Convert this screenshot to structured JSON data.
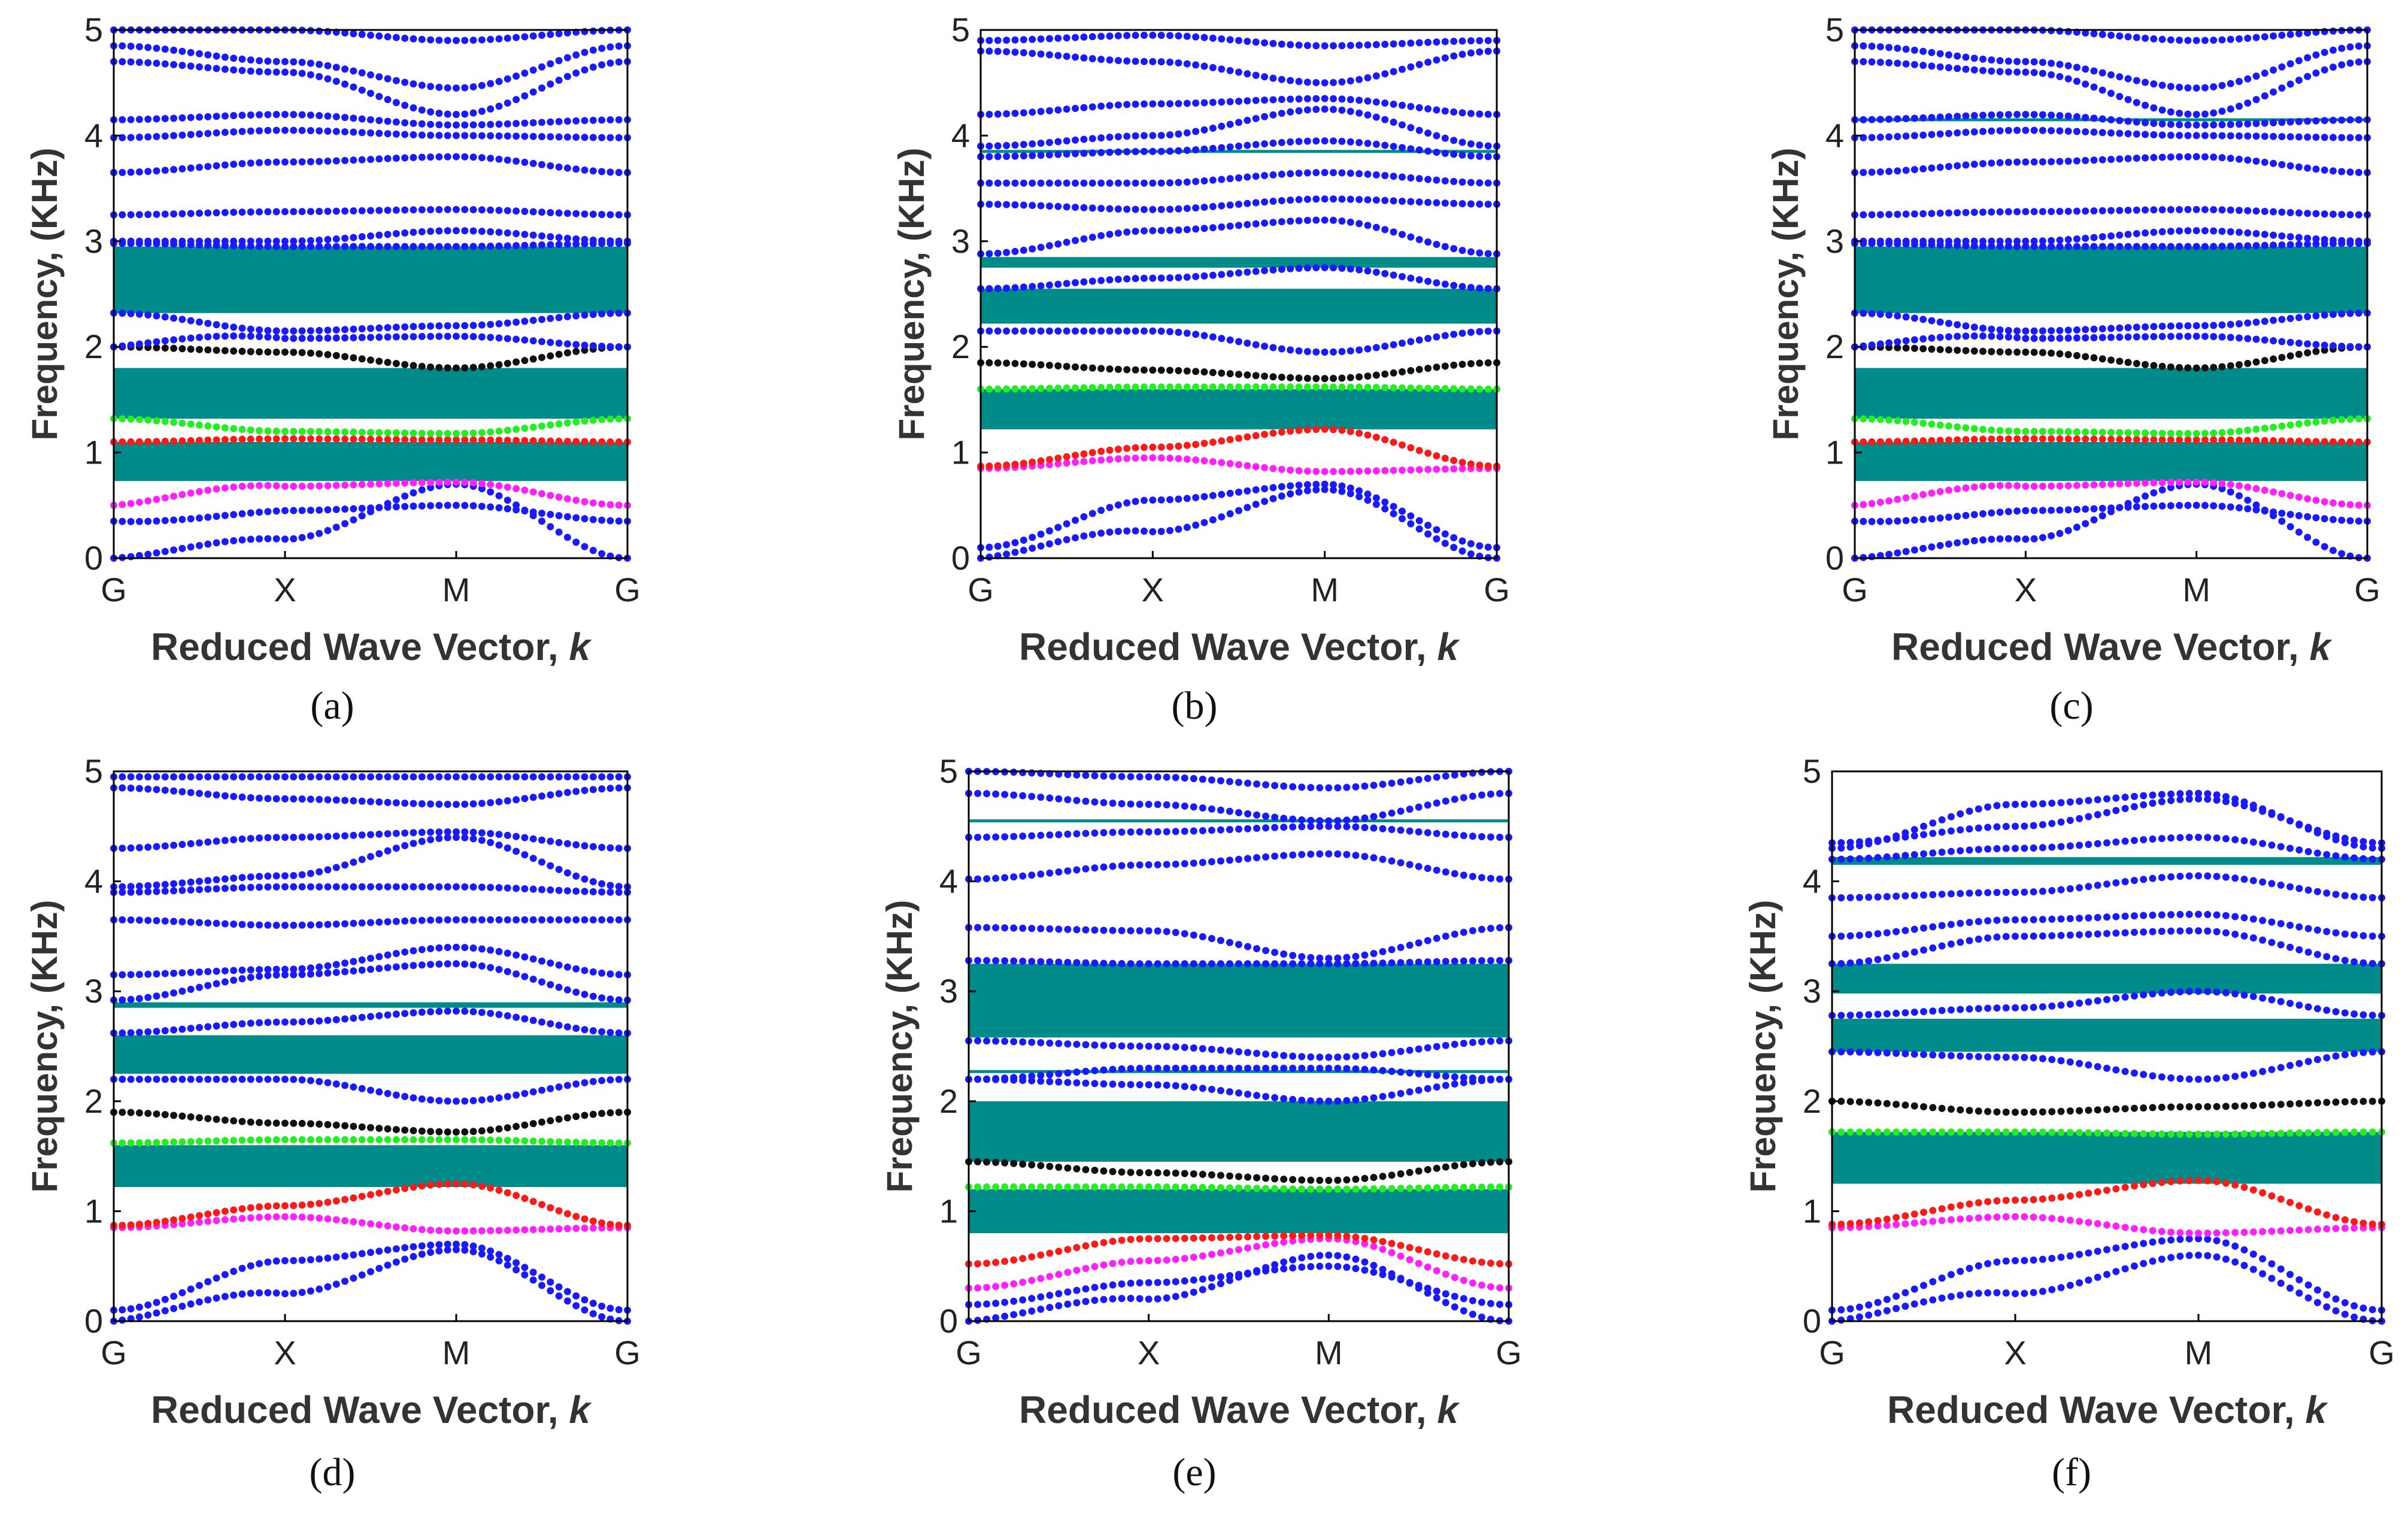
{
  "figure": {
    "ylabel": "Frequency, (KHz)",
    "xlabel": "Reduced Wave Vector, ",
    "xlabel_italic": "k",
    "xticks": [
      "G",
      "X",
      "M",
      "G"
    ],
    "yticks": [
      "0",
      "1",
      "2",
      "3",
      "4",
      "5"
    ]
  },
  "colors": {
    "band_default": "#1a1aff",
    "gap": "#008b8b",
    "red": "#ff1a1a",
    "green": "#22ee22",
    "magenta": "#ff22ff",
    "black": "#111111",
    "axis": "#000000",
    "background": "#ffffff"
  },
  "chart_data": [
    {
      "type": "scatter",
      "label": "(a)",
      "title": "",
      "xlabel": "Reduced Wave Vector, k",
      "ylabel": "Frequency, (KHz)",
      "x_ticks": [
        "G",
        "X",
        "M",
        "G"
      ],
      "x_range": [
        0,
        3
      ],
      "ylim": [
        0,
        5
      ],
      "bandgaps": [
        [
          0.73,
          1.1
        ],
        [
          1.32,
          1.8
        ],
        [
          2.32,
          2.95
        ]
      ],
      "flat_lines": [],
      "highlight": {
        "magenta": 2,
        "red": 3,
        "green": 4,
        "black": 5
      },
      "bands": [
        {
          "G": 0.0,
          "X": 0.18,
          "M": 0.7,
          "h": 0.03
        },
        {
          "G": 0.35,
          "X": 0.45,
          "M": 0.5,
          "h": -0.02
        },
        {
          "G": 0.5,
          "X": 0.68,
          "M": 0.72,
          "h": 0.04
        },
        {
          "G": 1.1,
          "X": 1.13,
          "M": 1.12,
          "h": 0.0
        },
        {
          "G": 1.32,
          "X": 1.2,
          "M": 1.18,
          "h": 0.0
        },
        {
          "G": 2.0,
          "X": 1.95,
          "M": 1.8,
          "h": 0.0
        },
        {
          "G": 2.0,
          "X": 2.08,
          "M": 2.1,
          "h": 0.05
        },
        {
          "G": 2.32,
          "X": 2.15,
          "M": 2.2,
          "h": 0.0
        },
        {
          "G": 2.98,
          "X": 2.95,
          "M": 2.95,
          "h": 0.0
        },
        {
          "G": 3.0,
          "X": 3.0,
          "M": 3.1,
          "h": 0.0
        },
        {
          "G": 3.25,
          "X": 3.28,
          "M": 3.3,
          "h": 0.0
        },
        {
          "G": 3.65,
          "X": 3.75,
          "M": 3.8,
          "h": 0.0
        },
        {
          "G": 3.98,
          "X": 4.05,
          "M": 4.0,
          "h": 0.0
        },
        {
          "G": 4.15,
          "X": 4.2,
          "M": 4.1,
          "h": 0.0
        },
        {
          "G": 4.7,
          "X": 4.6,
          "M": 4.2,
          "h": 0.0
        },
        {
          "G": 4.85,
          "X": 4.7,
          "M": 4.45,
          "h": 0.0
        },
        {
          "G": 5.0,
          "X": 5.0,
          "M": 4.9,
          "h": 0.0
        }
      ]
    },
    {
      "type": "scatter",
      "label": "(b)",
      "title": "",
      "xlabel": "Reduced Wave Vector, k",
      "ylabel": "Frequency, (KHz)",
      "x_ticks": [
        "G",
        "X",
        "M",
        "G"
      ],
      "x_range": [
        0,
        3
      ],
      "ylim": [
        0,
        5
      ],
      "bandgaps": [
        [
          1.22,
          1.6
        ],
        [
          2.22,
          2.55
        ],
        [
          2.75,
          2.85
        ]
      ],
      "flat_lines": [
        3.85
      ],
      "highlight": {
        "magenta": 2,
        "red": 3,
        "green": 4,
        "black": 5
      },
      "bands": [
        {
          "G": 0.0,
          "X": 0.25,
          "M": 0.65,
          "h": 0.05
        },
        {
          "G": 0.1,
          "X": 0.55,
          "M": 0.7,
          "h": 0.0
        },
        {
          "G": 0.85,
          "X": 0.95,
          "M": 0.82,
          "h": 0.0
        },
        {
          "G": 0.87,
          "X": 1.05,
          "M": 1.22,
          "h": 0.0
        },
        {
          "G": 1.6,
          "X": 1.62,
          "M": 1.62,
          "h": 0.0
        },
        {
          "G": 1.85,
          "X": 1.78,
          "M": 1.7,
          "h": 0.0
        },
        {
          "G": 2.15,
          "X": 2.15,
          "M": 1.95,
          "h": 0.0
        },
        {
          "G": 2.55,
          "X": 2.65,
          "M": 2.75,
          "h": 0.0
        },
        {
          "G": 2.88,
          "X": 3.1,
          "M": 3.2,
          "h": 0.0
        },
        {
          "G": 3.35,
          "X": 3.3,
          "M": 3.4,
          "h": 0.0
        },
        {
          "G": 3.55,
          "X": 3.55,
          "M": 3.65,
          "h": 0.0
        },
        {
          "G": 3.8,
          "X": 3.85,
          "M": 3.95,
          "h": 0.0
        },
        {
          "G": 3.9,
          "X": 4.0,
          "M": 4.25,
          "h": 0.0
        },
        {
          "G": 4.2,
          "X": 4.3,
          "M": 4.35,
          "h": 0.0
        },
        {
          "G": 4.8,
          "X": 4.7,
          "M": 4.5,
          "h": 0.0
        },
        {
          "G": 4.9,
          "X": 4.95,
          "M": 4.85,
          "h": 0.0
        }
      ]
    },
    {
      "type": "scatter",
      "label": "(c)",
      "title": "",
      "xlabel": "Reduced Wave Vector, k",
      "ylabel": "Frequency, (KHz)",
      "x_ticks": [
        "G",
        "X",
        "M",
        "G"
      ],
      "x_range": [
        0,
        3
      ],
      "ylim": [
        0,
        5
      ],
      "bandgaps": [
        [
          0.73,
          1.1
        ],
        [
          1.32,
          1.8
        ],
        [
          2.32,
          2.95
        ]
      ],
      "flat_lines": [
        4.15
      ],
      "highlight": {
        "magenta": 2,
        "red": 3,
        "green": 4,
        "black": 5
      },
      "bands": [
        {
          "G": 0.0,
          "X": 0.18,
          "M": 0.7,
          "h": 0.03
        },
        {
          "G": 0.35,
          "X": 0.45,
          "M": 0.5,
          "h": -0.02
        },
        {
          "G": 0.5,
          "X": 0.68,
          "M": 0.72,
          "h": 0.04
        },
        {
          "G": 1.1,
          "X": 1.13,
          "M": 1.12,
          "h": 0.0
        },
        {
          "G": 1.32,
          "X": 1.2,
          "M": 1.18,
          "h": 0.0
        },
        {
          "G": 2.0,
          "X": 1.95,
          "M": 1.8,
          "h": 0.0
        },
        {
          "G": 2.0,
          "X": 2.08,
          "M": 2.1,
          "h": 0.05
        },
        {
          "G": 2.32,
          "X": 2.15,
          "M": 2.2,
          "h": 0.0
        },
        {
          "G": 2.98,
          "X": 2.95,
          "M": 2.95,
          "h": 0.0
        },
        {
          "G": 3.0,
          "X": 3.0,
          "M": 3.1,
          "h": 0.0
        },
        {
          "G": 3.25,
          "X": 3.28,
          "M": 3.3,
          "h": 0.0
        },
        {
          "G": 3.65,
          "X": 3.75,
          "M": 3.8,
          "h": 0.0
        },
        {
          "G": 3.98,
          "X": 4.05,
          "M": 4.0,
          "h": 0.0
        },
        {
          "G": 4.15,
          "X": 4.2,
          "M": 4.1,
          "h": 0.0
        },
        {
          "G": 4.7,
          "X": 4.6,
          "M": 4.2,
          "h": 0.0
        },
        {
          "G": 4.85,
          "X": 4.7,
          "M": 4.45,
          "h": 0.0
        },
        {
          "G": 5.0,
          "X": 5.0,
          "M": 4.9,
          "h": 0.0
        }
      ]
    },
    {
      "type": "scatter",
      "label": "(d)",
      "title": "",
      "xlabel": "Reduced Wave Vector, k",
      "ylabel": "Frequency, (KHz)",
      "x_ticks": [
        "G",
        "X",
        "M",
        "G"
      ],
      "x_range": [
        0,
        3
      ],
      "ylim": [
        0,
        5
      ],
      "bandgaps": [
        [
          1.22,
          1.6
        ],
        [
          2.25,
          2.6
        ],
        [
          2.85,
          2.9
        ]
      ],
      "flat_lines": [],
      "highlight": {
        "magenta": 2,
        "red": 3,
        "green": 4,
        "black": 5
      },
      "bands": [
        {
          "G": 0.0,
          "X": 0.25,
          "M": 0.65,
          "h": 0.05
        },
        {
          "G": 0.1,
          "X": 0.55,
          "M": 0.7,
          "h": 0.0
        },
        {
          "G": 0.85,
          "X": 0.95,
          "M": 0.82,
          "h": 0.0
        },
        {
          "G": 0.87,
          "X": 1.05,
          "M": 1.25,
          "h": 0.0
        },
        {
          "G": 1.62,
          "X": 1.65,
          "M": 1.65,
          "h": 0.0
        },
        {
          "G": 1.9,
          "X": 1.8,
          "M": 1.72,
          "h": 0.0
        },
        {
          "G": 2.2,
          "X": 2.2,
          "M": 2.0,
          "h": 0.0
        },
        {
          "G": 2.62,
          "X": 2.72,
          "M": 2.82,
          "h": 0.0
        },
        {
          "G": 2.92,
          "X": 3.15,
          "M": 3.25,
          "h": 0.0
        },
        {
          "G": 3.15,
          "X": 3.2,
          "M": 3.4,
          "h": 0.0
        },
        {
          "G": 3.65,
          "X": 3.6,
          "M": 3.65,
          "h": 0.0
        },
        {
          "G": 3.9,
          "X": 3.95,
          "M": 3.95,
          "h": 0.0
        },
        {
          "G": 3.95,
          "X": 4.05,
          "M": 4.4,
          "h": 0.0
        },
        {
          "G": 4.3,
          "X": 4.4,
          "M": 4.45,
          "h": 0.0
        },
        {
          "G": 4.85,
          "X": 4.75,
          "M": 4.7,
          "h": 0.0
        },
        {
          "G": 4.95,
          "X": 4.95,
          "M": 4.95,
          "h": 0.0
        }
      ]
    },
    {
      "type": "scatter",
      "label": "(e)",
      "title": "",
      "xlabel": "Reduced Wave Vector, k",
      "ylabel": "Frequency, (KHz)",
      "x_ticks": [
        "G",
        "X",
        "M",
        "G"
      ],
      "x_range": [
        0,
        3
      ],
      "ylim": [
        0,
        5
      ],
      "bandgaps": [
        [
          0.8,
          1.2
        ],
        [
          1.45,
          2.0
        ],
        [
          2.58,
          3.25
        ]
      ],
      "flat_lines": [
        2.27,
        4.55
      ],
      "highlight": {
        "magenta": 2,
        "red": 3,
        "green": 4,
        "black": 5
      },
      "bands": [
        {
          "G": 0.0,
          "X": 0.2,
          "M": 0.6,
          "h": 0.04
        },
        {
          "G": 0.15,
          "X": 0.35,
          "M": 0.5,
          "h": 0.0
        },
        {
          "G": 0.3,
          "X": 0.55,
          "M": 0.75,
          "h": 0.0
        },
        {
          "G": 0.52,
          "X": 0.75,
          "M": 0.78,
          "h": 0.0
        },
        {
          "G": 1.22,
          "X": 1.22,
          "M": 1.2,
          "h": 0.0
        },
        {
          "G": 1.45,
          "X": 1.35,
          "M": 1.28,
          "h": 0.0
        },
        {
          "G": 2.2,
          "X": 2.15,
          "M": 2.0,
          "h": 0.0
        },
        {
          "G": 2.2,
          "X": 2.3,
          "M": 2.3,
          "h": 0.0
        },
        {
          "G": 2.55,
          "X": 2.5,
          "M": 2.4,
          "h": 0.0
        },
        {
          "G": 3.28,
          "X": 3.25,
          "M": 3.25,
          "h": 0.0
        },
        {
          "G": 3.58,
          "X": 3.55,
          "M": 3.3,
          "h": 0.0
        },
        {
          "G": 4.02,
          "X": 4.15,
          "M": 4.25,
          "h": 0.0
        },
        {
          "G": 4.4,
          "X": 4.45,
          "M": 4.5,
          "h": 0.0
        },
        {
          "G": 4.8,
          "X": 4.7,
          "M": 4.55,
          "h": 0.0
        },
        {
          "G": 5.0,
          "X": 4.95,
          "M": 4.85,
          "h": 0.0
        }
      ]
    },
    {
      "type": "scatter",
      "label": "(f)",
      "title": "",
      "xlabel": "Reduced Wave Vector, k",
      "ylabel": "Frequency, (KHz)",
      "x_ticks": [
        "G",
        "X",
        "M",
        "G"
      ],
      "x_range": [
        0,
        3
      ],
      "ylim": [
        0,
        5
      ],
      "bandgaps": [
        [
          1.25,
          1.72
        ],
        [
          2.45,
          2.75
        ],
        [
          2.98,
          3.25
        ],
        [
          4.15,
          4.22
        ]
      ],
      "flat_lines": [],
      "highlight": {
        "magenta": 2,
        "red": 3,
        "green": 4,
        "black": 5
      },
      "bands": [
        {
          "G": 0.0,
          "X": 0.25,
          "M": 0.6,
          "h": 0.05
        },
        {
          "G": 0.1,
          "X": 0.55,
          "M": 0.75,
          "h": 0.0
        },
        {
          "G": 0.85,
          "X": 0.95,
          "M": 0.8,
          "h": 0.0
        },
        {
          "G": 0.88,
          "X": 1.1,
          "M": 1.28,
          "h": 0.0
        },
        {
          "G": 1.72,
          "X": 1.72,
          "M": 1.7,
          "h": 0.0
        },
        {
          "G": 2.0,
          "X": 1.9,
          "M": 1.95,
          "h": 0.0
        },
        {
          "G": 2.45,
          "X": 2.4,
          "M": 2.2,
          "h": 0.0
        },
        {
          "G": 2.78,
          "X": 2.85,
          "M": 3.0,
          "h": 0.0
        },
        {
          "G": 3.25,
          "X": 3.5,
          "M": 3.55,
          "h": 0.0
        },
        {
          "G": 3.5,
          "X": 3.65,
          "M": 3.7,
          "h": 0.0
        },
        {
          "G": 3.85,
          "X": 3.9,
          "M": 4.05,
          "h": 0.0
        },
        {
          "G": 4.2,
          "X": 4.3,
          "M": 4.4,
          "h": 0.0
        },
        {
          "G": 4.35,
          "X": 4.5,
          "M": 4.75,
          "h": 0.0
        },
        {
          "G": 4.3,
          "X": 4.7,
          "M": 4.8,
          "h": 0.0
        }
      ]
    }
  ]
}
